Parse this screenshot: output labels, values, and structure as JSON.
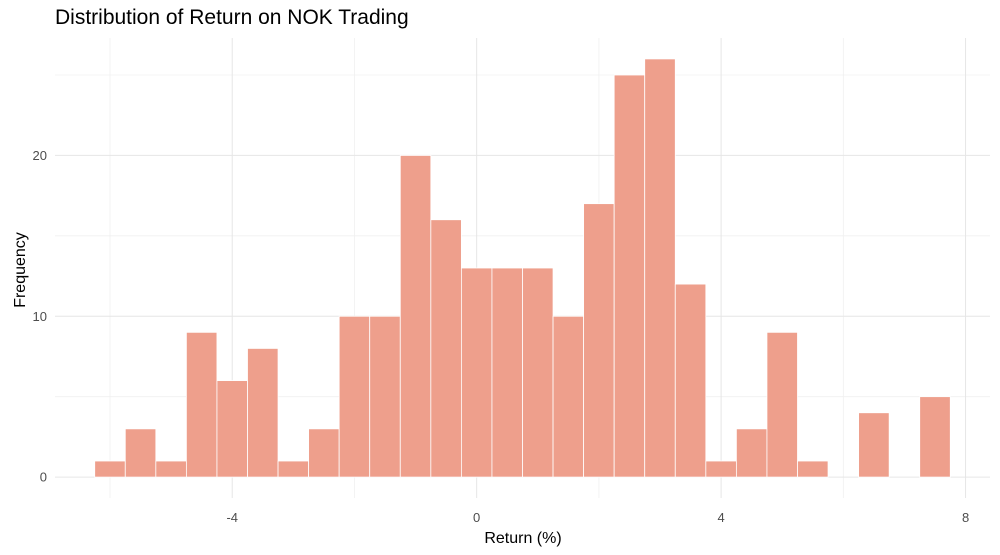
{
  "chart_data": {
    "type": "histogram",
    "title": "Distribution of Return on NOK Trading",
    "xlabel": "Return (%)",
    "ylabel": "Frequency",
    "bin_width": 0.5,
    "bins": [
      {
        "x0": -6.25,
        "x1": -5.75,
        "count": 1
      },
      {
        "x0": -5.75,
        "x1": -5.25,
        "count": 3
      },
      {
        "x0": -5.25,
        "x1": -4.75,
        "count": 1
      },
      {
        "x0": -4.75,
        "x1": -4.25,
        "count": 9
      },
      {
        "x0": -4.25,
        "x1": -3.75,
        "count": 6
      },
      {
        "x0": -3.75,
        "x1": -3.25,
        "count": 8
      },
      {
        "x0": -3.25,
        "x1": -2.75,
        "count": 1
      },
      {
        "x0": -2.75,
        "x1": -2.25,
        "count": 3
      },
      {
        "x0": -2.25,
        "x1": -1.75,
        "count": 10
      },
      {
        "x0": -1.75,
        "x1": -1.25,
        "count": 10
      },
      {
        "x0": -1.25,
        "x1": -0.75,
        "count": 20
      },
      {
        "x0": -0.75,
        "x1": -0.25,
        "count": 16
      },
      {
        "x0": -0.25,
        "x1": 0.25,
        "count": 13
      },
      {
        "x0": 0.25,
        "x1": 0.75,
        "count": 13
      },
      {
        "x0": 0.75,
        "x1": 1.25,
        "count": 13
      },
      {
        "x0": 1.25,
        "x1": 1.75,
        "count": 10
      },
      {
        "x0": 1.75,
        "x1": 2.25,
        "count": 17
      },
      {
        "x0": 2.25,
        "x1": 2.75,
        "count": 25
      },
      {
        "x0": 2.75,
        "x1": 3.25,
        "count": 26
      },
      {
        "x0": 3.25,
        "x1": 3.75,
        "count": 12
      },
      {
        "x0": 3.75,
        "x1": 4.25,
        "count": 1
      },
      {
        "x0": 4.25,
        "x1": 4.75,
        "count": 3
      },
      {
        "x0": 4.75,
        "x1": 5.25,
        "count": 9
      },
      {
        "x0": 5.25,
        "x1": 5.75,
        "count": 1
      },
      {
        "x0": 5.75,
        "x1": 6.25,
        "count": 0
      },
      {
        "x0": 6.25,
        "x1": 6.75,
        "count": 4
      },
      {
        "x0": 6.75,
        "x1": 7.25,
        "count": 0
      },
      {
        "x0": 7.25,
        "x1": 7.75,
        "count": 5
      }
    ],
    "xlim": [
      -6.9,
      8.4
    ],
    "ylim": [
      -1.3,
      27.3
    ],
    "x_ticks": [
      -4,
      0,
      4,
      8
    ],
    "y_ticks": [
      0,
      10,
      20
    ],
    "bar_color": "#EE9F8C",
    "bar_edge_color": "#ffffff",
    "grid": true,
    "legend": "none"
  }
}
